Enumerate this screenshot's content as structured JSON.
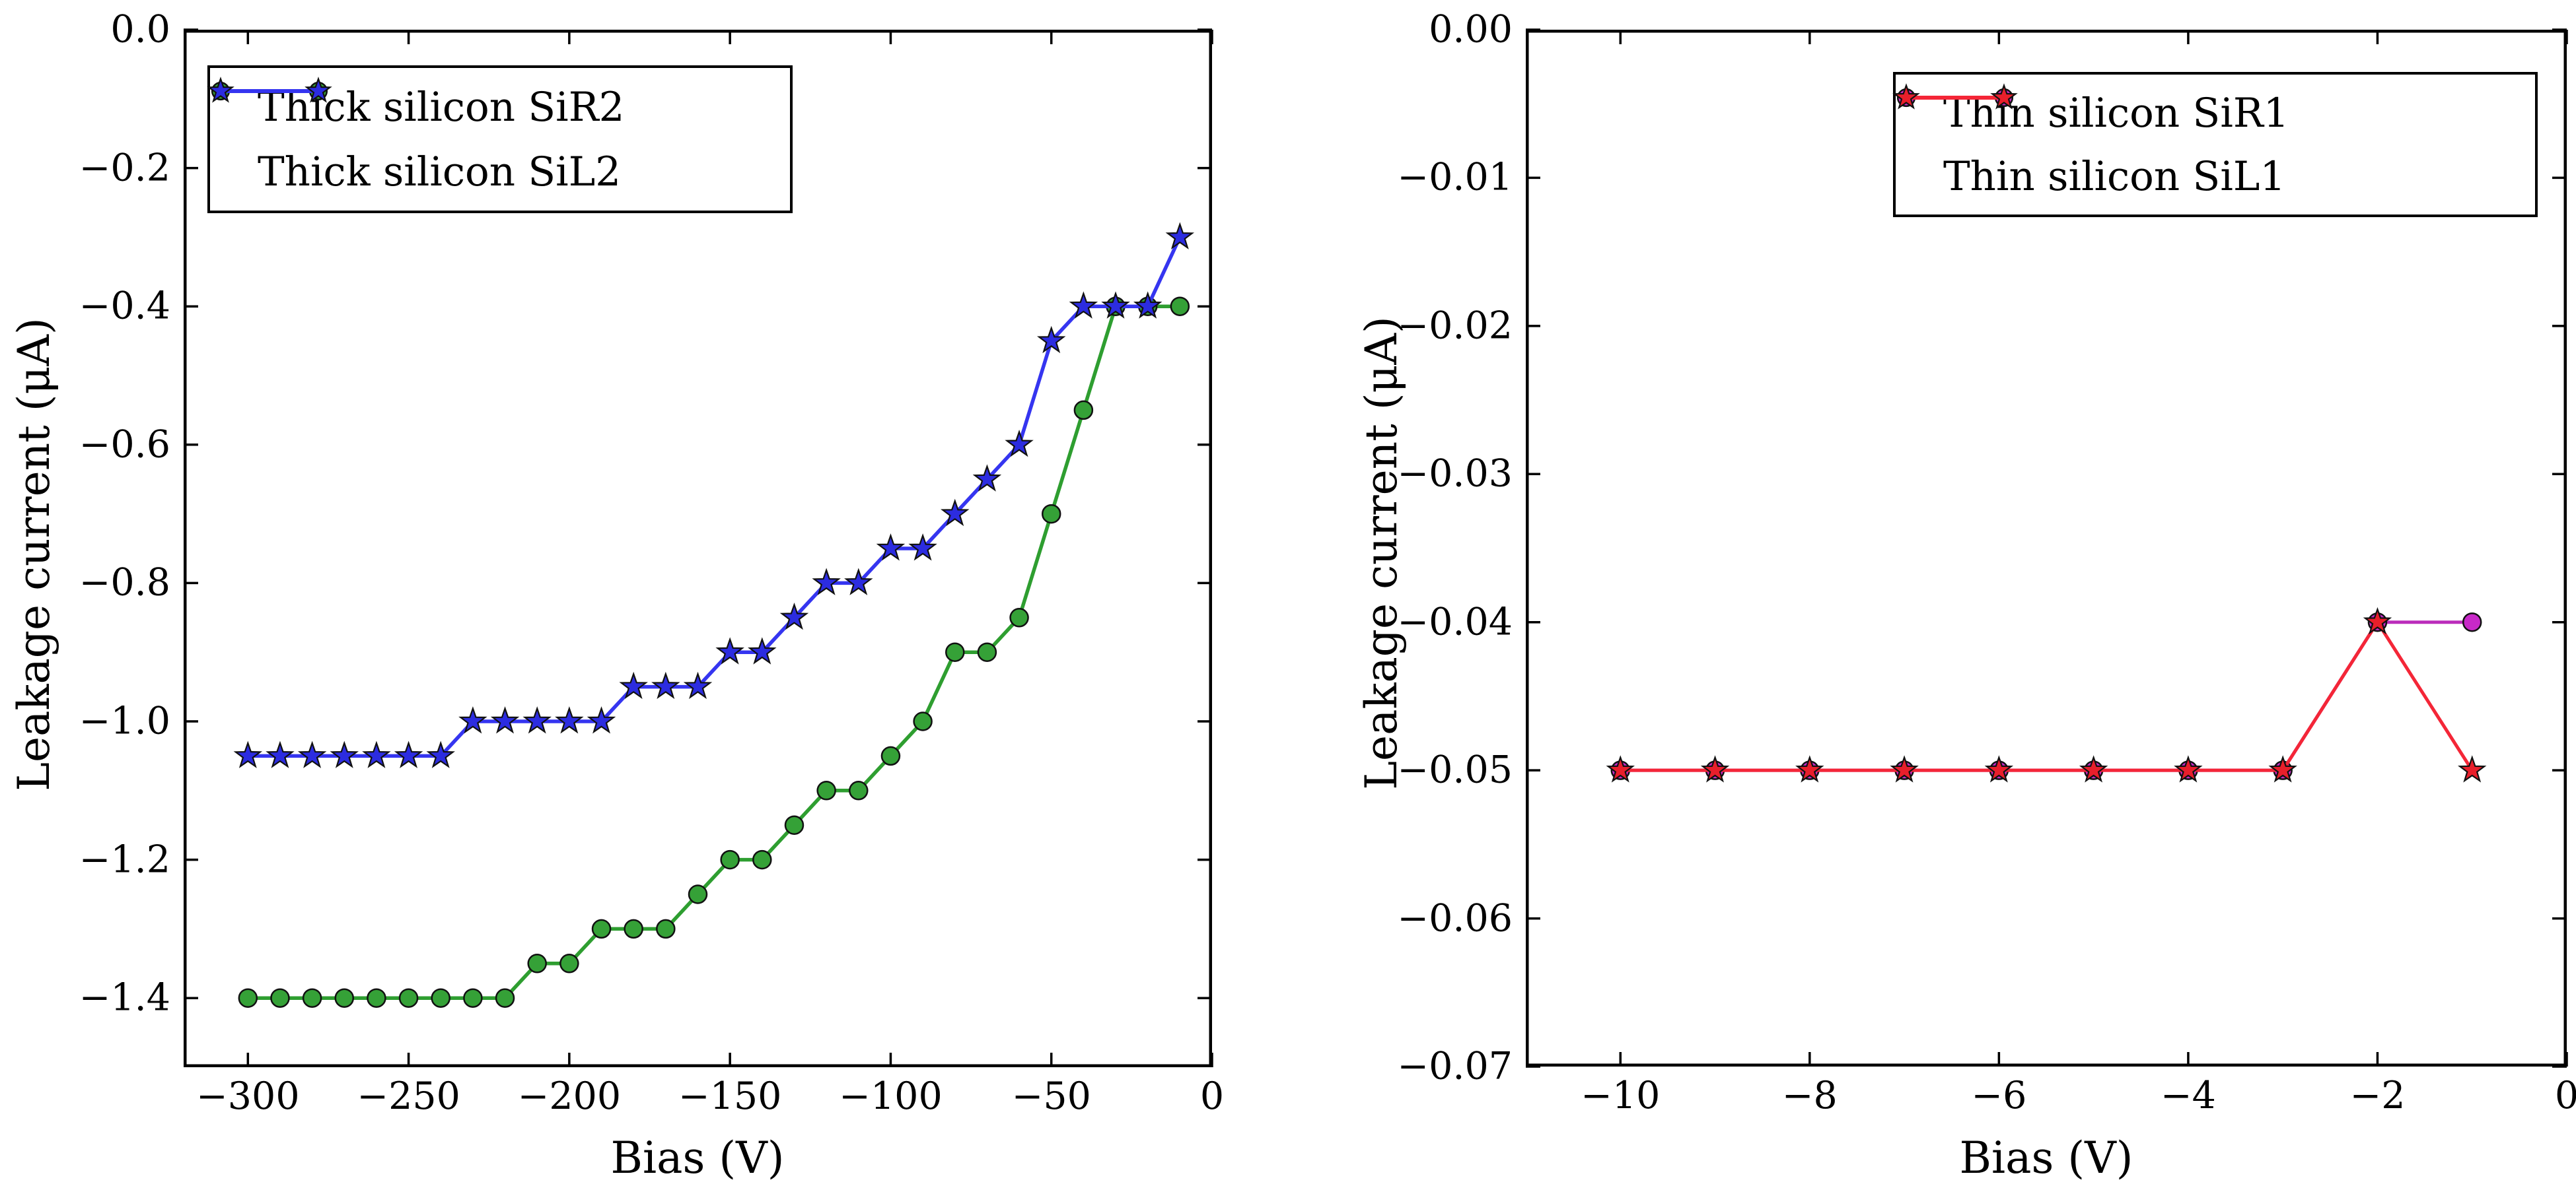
{
  "figure": {
    "background": "#ffffff",
    "marker_edge_color": "#111111"
  },
  "chart_data": [
    {
      "type": "line",
      "panel": "left",
      "title": "",
      "xlabel": "Bias (V)",
      "ylabel": "Leakage current (μA)",
      "xlim": [
        -320,
        0
      ],
      "ylim": [
        -1.5,
        0
      ],
      "grid": false,
      "legend_position": "upper left",
      "xticks": [
        -300,
        -250,
        -200,
        -150,
        -100,
        -50,
        0
      ],
      "xtick_labels": [
        "−300",
        "−250",
        "−200",
        "−150",
        "−100",
        "−50",
        "0"
      ],
      "yticks": [
        0.0,
        -0.2,
        -0.4,
        -0.6,
        -0.8,
        -1.0,
        -1.2,
        -1.4
      ],
      "ytick_labels": [
        "0.0",
        "−0.2",
        "−0.4",
        "−0.6",
        "−0.8",
        "−1.0",
        "−1.2",
        "−1.4"
      ],
      "x": [
        -300,
        -290,
        -280,
        -270,
        -260,
        -250,
        -240,
        -230,
        -220,
        -210,
        -200,
        -190,
        -180,
        -170,
        -160,
        -150,
        -140,
        -130,
        -120,
        -110,
        -100,
        -90,
        -80,
        -70,
        -60,
        -50,
        -40,
        -30,
        -20,
        -10
      ],
      "series": [
        {
          "name": "Thick silicon SiR2",
          "marker": "circle",
          "line_color": "#2e9e30",
          "fill_color": "#35a137",
          "values": [
            -1.4,
            -1.4,
            -1.4,
            -1.4,
            -1.4,
            -1.4,
            -1.4,
            -1.4,
            -1.4,
            -1.35,
            -1.35,
            -1.3,
            -1.3,
            -1.3,
            -1.25,
            -1.2,
            -1.2,
            -1.15,
            -1.1,
            -1.1,
            -1.05,
            -1.0,
            -0.9,
            -0.9,
            -0.85,
            -0.7,
            -0.55,
            -0.4,
            -0.4,
            -0.4
          ]
        },
        {
          "name": "Thick silicon SiL2",
          "marker": "star",
          "line_color": "#3535f0",
          "fill_color": "#2c2ce0",
          "values": [
            -1.05,
            -1.05,
            -1.05,
            -1.05,
            -1.05,
            -1.05,
            -1.05,
            -1.0,
            -1.0,
            -1.0,
            -1.0,
            -1.0,
            -0.95,
            -0.95,
            -0.95,
            -0.9,
            -0.9,
            -0.85,
            -0.8,
            -0.8,
            -0.75,
            -0.75,
            -0.7,
            -0.65,
            -0.6,
            -0.45,
            -0.4,
            -0.4,
            -0.4,
            -0.3
          ]
        }
      ]
    },
    {
      "type": "line",
      "panel": "right",
      "title": "",
      "xlabel": "Bias (V)",
      "ylabel": "Leakage current (μA)",
      "xlim": [
        -11,
        0
      ],
      "ylim": [
        -0.07,
        0
      ],
      "grid": false,
      "legend_position": "upper right",
      "xticks": [
        -10,
        -8,
        -6,
        -4,
        -2,
        0
      ],
      "xtick_labels": [
        "−10",
        "−8",
        "−6",
        "−4",
        "−2",
        "0"
      ],
      "yticks": [
        0.0,
        -0.01,
        -0.02,
        -0.03,
        -0.04,
        -0.05,
        -0.06,
        -0.07
      ],
      "ytick_labels": [
        "0.00",
        "−0.01",
        "−0.02",
        "−0.03",
        "−0.04",
        "−0.05",
        "−0.06",
        "−0.07"
      ],
      "x": [
        -10,
        -9,
        -8,
        -7,
        -6,
        -5,
        -4,
        -3,
        -2,
        -1
      ],
      "series": [
        {
          "name": "Thin silicon SiR1",
          "marker": "circle",
          "line_color": "#bb2dbb",
          "fill_color": "#c829c8",
          "values": [
            -0.05,
            -0.05,
            -0.05,
            -0.05,
            -0.05,
            -0.05,
            -0.05,
            -0.05,
            -0.04,
            -0.04
          ]
        },
        {
          "name": "Thin silicon SiL1",
          "marker": "star",
          "line_color": "#f42637",
          "fill_color": "#e81f2b",
          "values": [
            -0.05,
            -0.05,
            -0.05,
            -0.05,
            -0.05,
            -0.05,
            -0.05,
            -0.05,
            -0.04,
            -0.05
          ]
        }
      ]
    }
  ]
}
